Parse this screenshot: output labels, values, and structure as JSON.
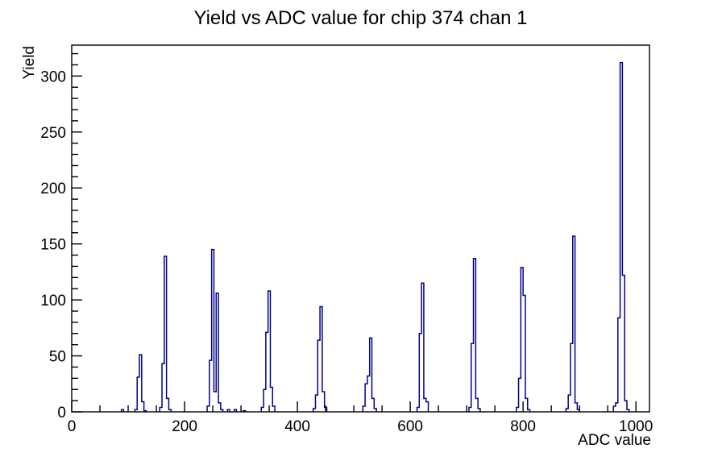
{
  "chart_data": {
    "type": "bar",
    "title": "Yield vs ADC value for chip 374 chan 1",
    "xlabel": "ADC value",
    "ylabel": "Yield",
    "xlim": [
      0,
      1024
    ],
    "ylim": [
      0,
      327.6
    ],
    "x_major_ticks": [
      0,
      200,
      400,
      600,
      800,
      1000
    ],
    "y_major_ticks": [
      0,
      50,
      100,
      150,
      200,
      250,
      300
    ],
    "x_minor_step": 50,
    "y_minor_step": 10,
    "grid": false,
    "legend": "none",
    "line_color": "#00008b",
    "frame_color": "#000000",
    "bin_width": 4,
    "bins": [
      [
        88,
        2
      ],
      [
        112,
        2
      ],
      [
        116,
        31
      ],
      [
        120,
        51
      ],
      [
        124,
        9
      ],
      [
        128,
        1
      ],
      [
        156,
        4
      ],
      [
        160,
        43
      ],
      [
        164,
        139
      ],
      [
        168,
        12
      ],
      [
        172,
        2
      ],
      [
        240,
        5
      ],
      [
        244,
        46
      ],
      [
        248,
        145
      ],
      [
        252,
        18
      ],
      [
        256,
        106
      ],
      [
        260,
        8
      ],
      [
        264,
        2
      ],
      [
        276,
        2
      ],
      [
        288,
        2
      ],
      [
        304,
        1
      ],
      [
        336,
        4
      ],
      [
        340,
        20
      ],
      [
        344,
        71
      ],
      [
        348,
        108
      ],
      [
        352,
        22
      ],
      [
        356,
        5
      ],
      [
        428,
        3
      ],
      [
        432,
        15
      ],
      [
        436,
        64
      ],
      [
        440,
        94
      ],
      [
        444,
        18
      ],
      [
        448,
        4
      ],
      [
        516,
        5
      ],
      [
        520,
        25
      ],
      [
        524,
        32
      ],
      [
        528,
        66
      ],
      [
        532,
        12
      ],
      [
        536,
        3
      ],
      [
        612,
        4
      ],
      [
        616,
        70
      ],
      [
        620,
        115
      ],
      [
        624,
        12
      ],
      [
        628,
        9
      ],
      [
        704,
        4
      ],
      [
        708,
        61
      ],
      [
        712,
        137
      ],
      [
        716,
        12
      ],
      [
        720,
        3
      ],
      [
        788,
        4
      ],
      [
        792,
        30
      ],
      [
        796,
        129
      ],
      [
        800,
        104
      ],
      [
        804,
        12
      ],
      [
        808,
        2
      ],
      [
        876,
        3
      ],
      [
        880,
        15
      ],
      [
        884,
        61
      ],
      [
        888,
        157
      ],
      [
        892,
        8
      ],
      [
        896,
        2
      ],
      [
        960,
        5
      ],
      [
        964,
        8
      ],
      [
        968,
        84
      ],
      [
        972,
        312
      ],
      [
        976,
        122
      ],
      [
        980,
        10
      ],
      [
        984,
        2
      ]
    ]
  }
}
